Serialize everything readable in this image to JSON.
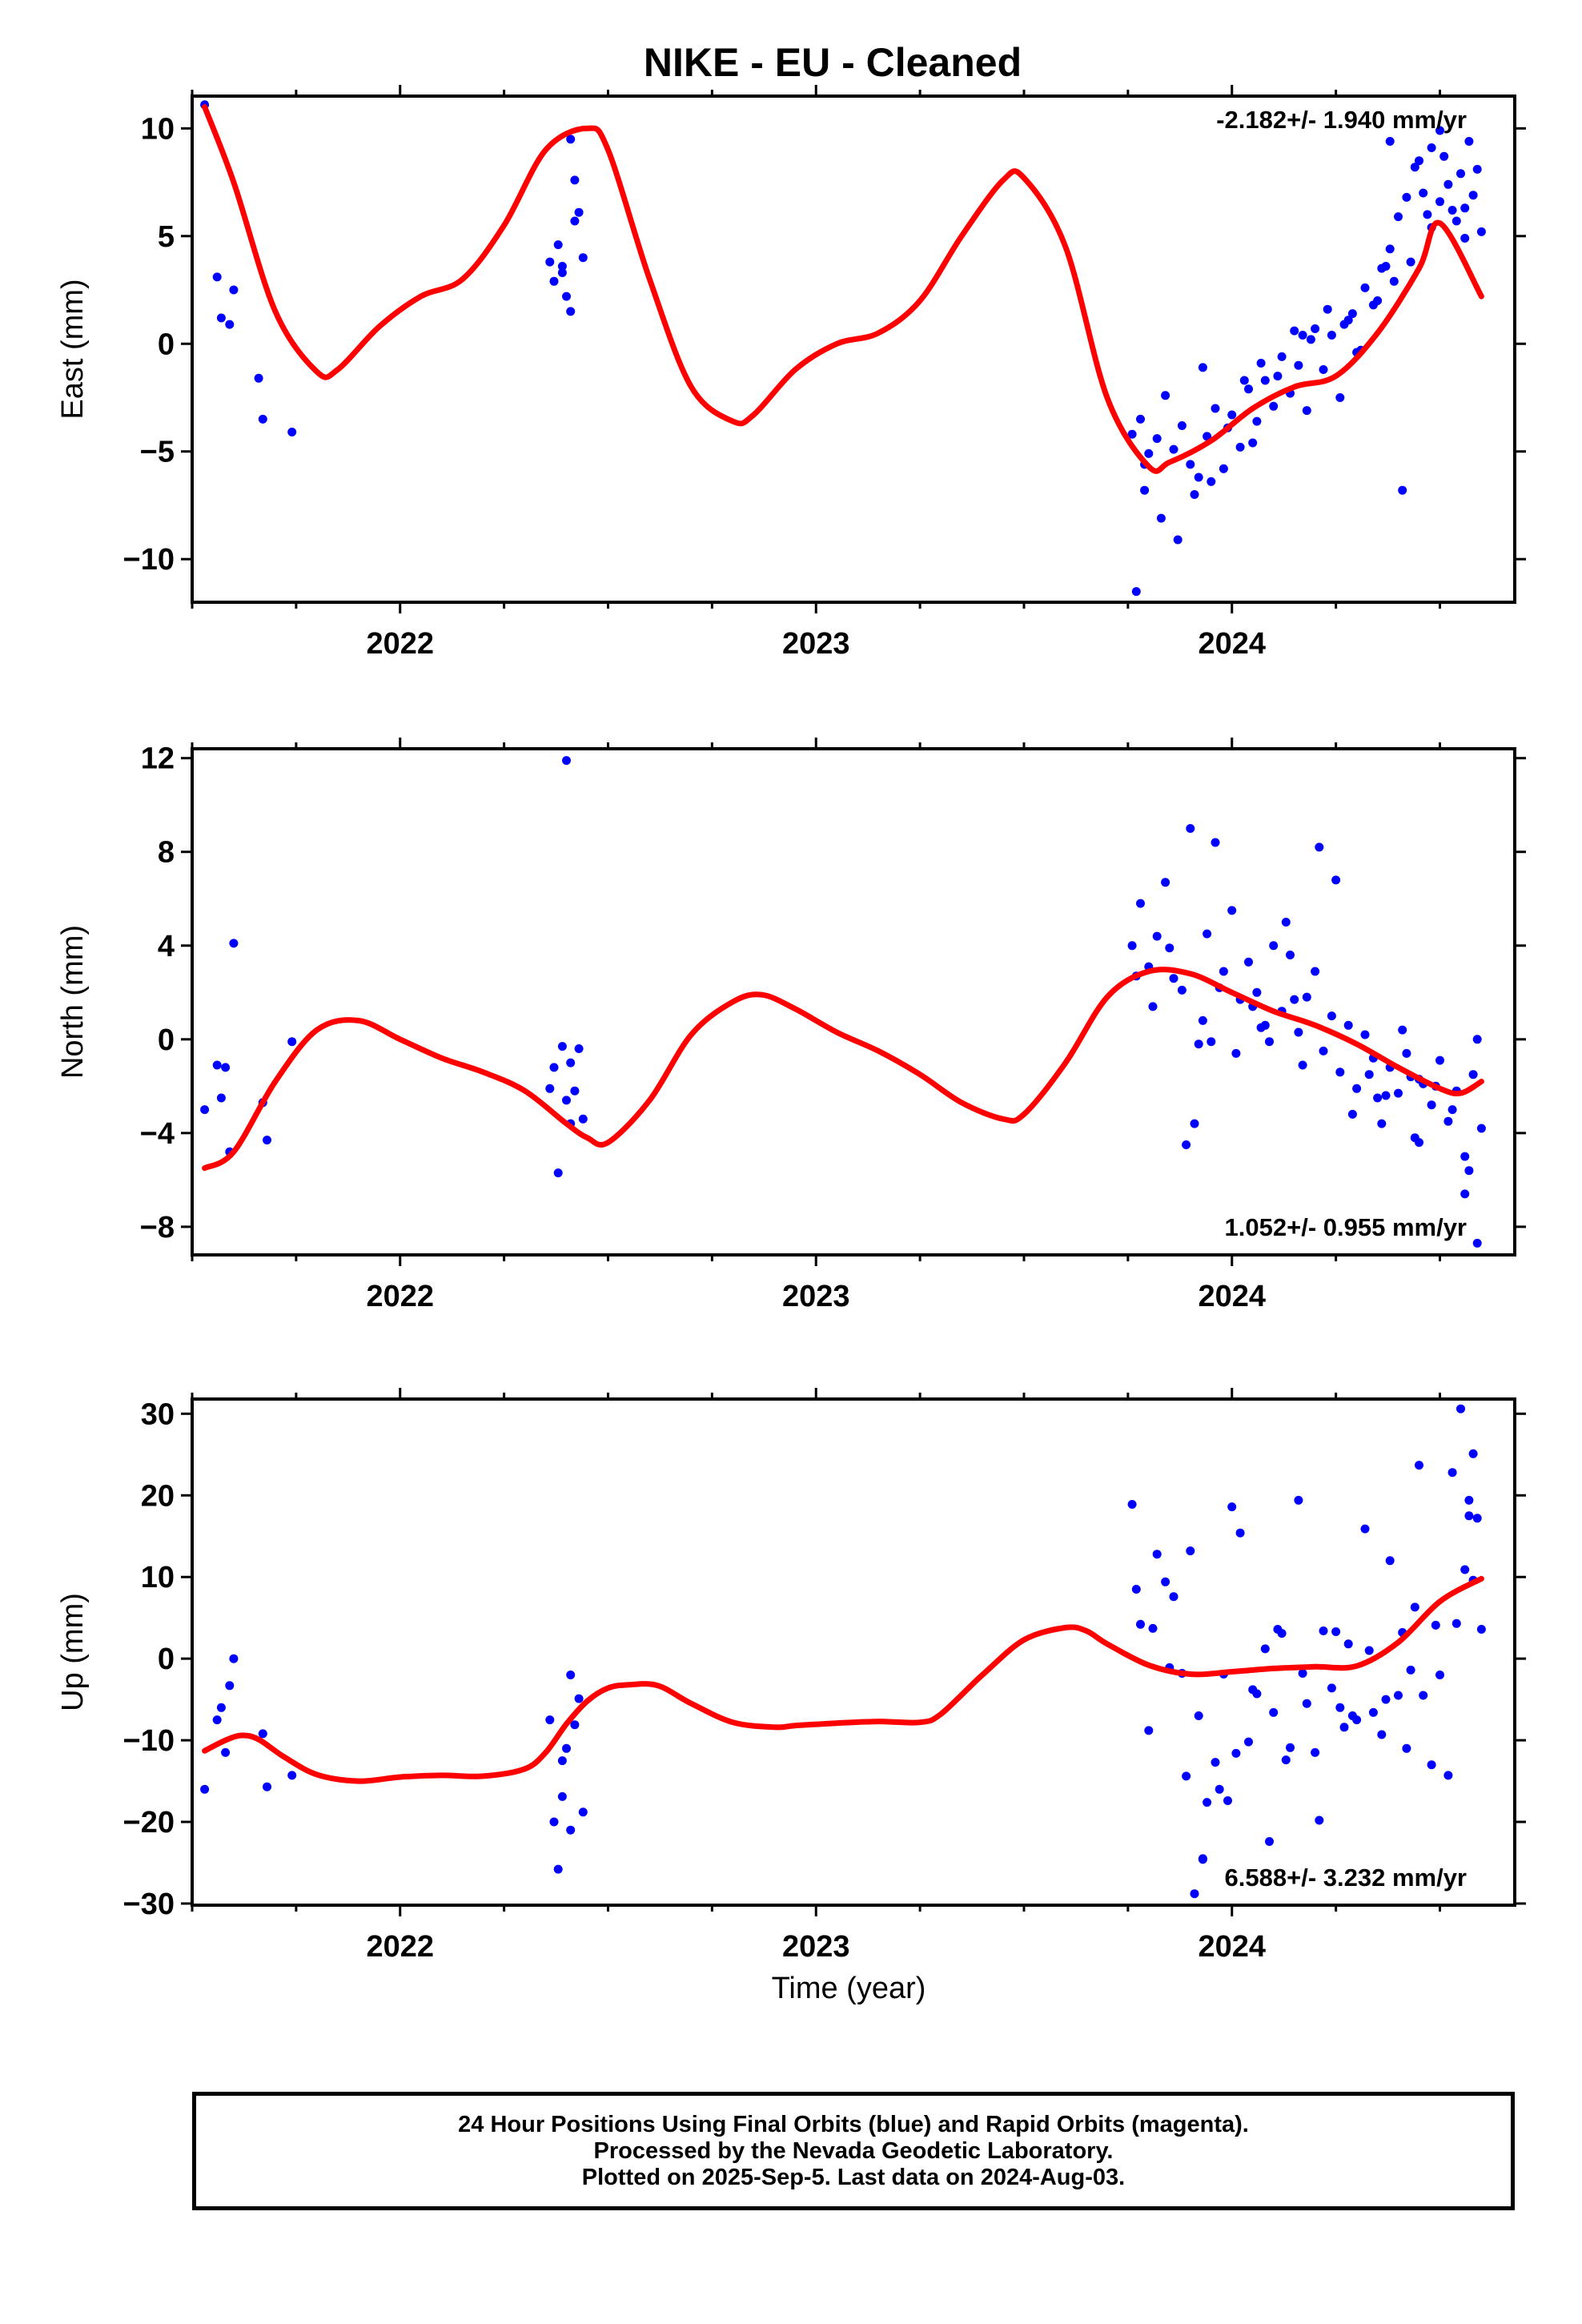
{
  "figure": {
    "title": "NIKE  - EU - Cleaned",
    "time_axis_label": "Time (year)"
  },
  "footer": {
    "line1": "24 Hour Positions Using Final Orbits (blue) and Rapid Orbits (magenta).",
    "line2": "Processed by the Nevada Geodetic Laboratory.",
    "line3": "Plotted on 2025-Sep-5. Last data on 2024-Aug-03."
  },
  "colors": {
    "points": "#0000ff",
    "fit": "#ff0000",
    "frame": "#000000"
  },
  "chart_data": [
    {
      "type": "scatter",
      "ylabel": "East (mm)",
      "xlim": [
        2021.5,
        2024.68
      ],
      "ylim": [
        -12,
        11.5
      ],
      "xticks": [
        "2022",
        "2023",
        "2024"
      ],
      "yticks": [
        10,
        5,
        0,
        -5,
        -10
      ],
      "yticklabels": [
        "10",
        "5",
        "0",
        "−5",
        "−10"
      ],
      "rate_label": "-2.182+/- 1.940 mm/yr",
      "rate_position": "top-right",
      "series": [
        {
          "type": "scatter",
          "x": [
            2021.53,
            2021.56,
            2021.57,
            2021.59,
            2021.6,
            2021.66,
            2021.67,
            2021.74,
            2022.36,
            2022.37,
            2022.38,
            2022.39,
            2022.4,
            2022.41,
            2022.42,
            2022.43,
            2022.44,
            2022.42,
            2022.39,
            2022.41,
            2023.76,
            2023.78,
            2023.79,
            2023.8,
            2023.82,
            2023.84,
            2023.86,
            2023.88,
            2023.9,
            2023.92,
            2023.94,
            2023.96,
            2023.98,
            2024.0,
            2024.02,
            2024.04,
            2024.06,
            2024.08,
            2024.1,
            2024.12,
            2024.14,
            2024.16,
            2024.18,
            2024.2,
            2024.22,
            2024.24,
            2024.26,
            2024.28,
            2024.3,
            2024.32,
            2024.34,
            2024.36,
            2024.38,
            2024.4,
            2024.42,
            2024.44,
            2024.46,
            2024.48,
            2024.5,
            2024.52,
            2024.54,
            2024.56,
            2024.58,
            2024.6,
            2023.77,
            2023.83,
            2023.87,
            2023.91,
            2023.95,
            2023.99,
            2024.03,
            2024.07,
            2024.11,
            2024.15,
            2024.19,
            2024.23,
            2024.27,
            2024.31,
            2024.35,
            2024.39,
            2024.43,
            2024.47,
            2024.51,
            2024.55,
            2024.59,
            2024.38,
            2024.41,
            2024.45,
            2024.5,
            2024.53,
            2024.57,
            2024.48,
            2024.56,
            2023.79,
            2023.93,
            2024.05,
            2024.17,
            2024.29,
            2024.37
          ],
          "y": [
            11.1,
            3.1,
            1.2,
            0.9,
            2.5,
            -1.6,
            -3.5,
            -4.1,
            3.8,
            2.9,
            4.6,
            3.3,
            2.2,
            1.5,
            5.7,
            6.1,
            4.0,
            7.6,
            3.6,
            9.5,
            -4.2,
            -3.5,
            -6.8,
            -5.1,
            -4.4,
            -2.4,
            -4.9,
            -3.8,
            -5.6,
            -6.2,
            -4.3,
            -3.0,
            -5.8,
            -3.3,
            -4.8,
            -2.1,
            -3.6,
            -1.7,
            -2.9,
            -0.6,
            -2.3,
            -1.0,
            -3.1,
            0.7,
            -1.2,
            0.4,
            -2.5,
            1.1,
            -0.4,
            2.6,
            1.8,
            3.5,
            4.4,
            5.9,
            6.8,
            8.2,
            7.0,
            5.4,
            6.6,
            7.4,
            5.7,
            6.3,
            6.9,
            5.2,
            -11.5,
            -8.1,
            -9.1,
            -7.0,
            -6.4,
            -3.9,
            -1.7,
            -0.9,
            -1.5,
            0.6,
            0.2,
            1.6,
            0.9,
            -0.3,
            2.0,
            2.9,
            3.8,
            6.0,
            8.7,
            7.9,
            8.1,
            9.4,
            -6.8,
            8.5,
            9.9,
            6.2,
            9.4,
            9.1,
            4.9,
            -5.6,
            -1.1,
            -4.6,
            0.4,
            1.4,
            3.6
          ]
        },
        {
          "type": "line",
          "name": "",
          "x": [
            2021.53,
            2021.6,
            2021.7,
            2021.8,
            2021.85,
            2021.95,
            2022.05,
            2022.15,
            2022.25,
            2022.35,
            2022.45,
            2022.5,
            2022.6,
            2022.7,
            2022.8,
            2022.85,
            2022.95,
            2023.05,
            2023.15,
            2023.25,
            2023.35,
            2023.45,
            2023.5,
            2023.6,
            2023.7,
            2023.8,
            2023.85,
            2023.95,
            2024.05,
            2024.15,
            2024.25,
            2024.35,
            2024.45,
            2024.5,
            2024.6
          ],
          "y": [
            11.0,
            7.5,
            1.5,
            -1.3,
            -1.2,
            0.8,
            2.2,
            3.0,
            5.5,
            9.0,
            10.0,
            9.0,
            3.0,
            -2.0,
            -3.6,
            -3.3,
            -1.2,
            0.0,
            0.5,
            2.0,
            5.0,
            7.6,
            7.7,
            4.5,
            -2.5,
            -5.7,
            -5.5,
            -4.5,
            -3.0,
            -2.0,
            -1.5,
            0.5,
            3.5,
            5.6,
            2.2
          ]
        }
      ]
    },
    {
      "type": "scatter",
      "ylabel": "North (mm)",
      "xlim": [
        2021.5,
        2024.68
      ],
      "ylim": [
        -9.2,
        12.4
      ],
      "xticks": [
        "2022",
        "2023",
        "2024"
      ],
      "yticks": [
        12,
        8,
        4,
        0,
        -4,
        -8
      ],
      "yticklabels": [
        "12",
        "8",
        "4",
        "0",
        "−4",
        "−8"
      ],
      "rate_label": "1.052+/- 0.955 mm/yr",
      "rate_position": "bottom-right",
      "series": [
        {
          "type": "scatter",
          "x": [
            2021.53,
            2021.56,
            2021.57,
            2021.58,
            2021.59,
            2021.6,
            2021.67,
            2021.68,
            2021.74,
            2022.36,
            2022.37,
            2022.38,
            2022.39,
            2022.4,
            2022.41,
            2022.42,
            2022.43,
            2022.44,
            2022.4,
            2022.41,
            2023.76,
            2023.78,
            2023.8,
            2023.82,
            2023.84,
            2023.86,
            2023.88,
            2023.9,
            2023.92,
            2023.94,
            2023.96,
            2023.98,
            2024.0,
            2024.02,
            2024.04,
            2024.06,
            2024.08,
            2024.1,
            2024.12,
            2024.14,
            2024.16,
            2024.18,
            2024.2,
            2024.22,
            2024.24,
            2024.26,
            2024.28,
            2024.3,
            2024.32,
            2024.34,
            2024.36,
            2024.38,
            2024.4,
            2024.42,
            2024.44,
            2024.46,
            2024.48,
            2024.5,
            2024.52,
            2024.54,
            2024.56,
            2024.58,
            2024.6,
            2023.77,
            2023.81,
            2023.85,
            2023.89,
            2023.93,
            2023.97,
            2024.01,
            2024.05,
            2024.09,
            2024.13,
            2024.17,
            2024.21,
            2024.25,
            2024.29,
            2024.33,
            2024.37,
            2024.41,
            2024.45,
            2024.49,
            2024.53,
            2024.57,
            2024.59,
            2023.91,
            2023.95,
            2024.07,
            2024.15,
            2024.45,
            2024.59,
            2024.56,
            2024.35,
            2024.43
          ],
          "y": [
            -3.0,
            -1.1,
            -2.5,
            -1.2,
            -4.8,
            4.1,
            -2.7,
            -4.3,
            -0.1,
            -2.1,
            -1.2,
            -5.7,
            -0.3,
            -2.6,
            -1.0,
            -2.2,
            -0.4,
            -3.4,
            11.9,
            -3.6,
            4.0,
            5.8,
            3.1,
            4.4,
            6.7,
            2.6,
            2.1,
            9.0,
            -0.2,
            4.5,
            8.4,
            2.9,
            5.5,
            1.7,
            3.3,
            2.0,
            0.6,
            4.0,
            1.2,
            3.6,
            0.3,
            1.8,
            2.9,
            -0.5,
            1.0,
            -1.4,
            0.6,
            -2.1,
            0.2,
            -0.8,
            -3.6,
            -1.2,
            -2.3,
            -0.6,
            -4.2,
            -1.9,
            -2.8,
            -0.9,
            -3.5,
            -2.2,
            -5.0,
            -1.5,
            -3.8,
            2.7,
            1.4,
            3.9,
            -4.5,
            0.8,
            2.2,
            -0.6,
            1.4,
            -0.1,
            5.0,
            -1.1,
            8.2,
            6.8,
            -3.2,
            -1.5,
            -2.4,
            0.4,
            -4.4,
            -2.0,
            -3.0,
            -5.6,
            -8.7,
            -3.6,
            -0.1,
            0.5,
            1.7,
            -1.7,
            0.0,
            -6.6,
            -2.5,
            -1.6
          ]
        },
        {
          "type": "line",
          "name": "",
          "x": [
            2021.53,
            2021.6,
            2021.7,
            2021.8,
            2021.9,
            2022.0,
            2022.1,
            2022.2,
            2022.3,
            2022.4,
            2022.45,
            2022.5,
            2022.6,
            2022.7,
            2022.8,
            2022.87,
            2022.95,
            2023.05,
            2023.15,
            2023.25,
            2023.35,
            2023.45,
            2023.5,
            2023.6,
            2023.7,
            2023.8,
            2023.9,
            2024.0,
            2024.1,
            2024.2,
            2024.3,
            2024.4,
            2024.5,
            2024.55,
            2024.6
          ],
          "y": [
            -5.5,
            -4.8,
            -1.8,
            0.4,
            0.8,
            0.0,
            -0.8,
            -1.4,
            -2.2,
            -3.6,
            -4.2,
            -4.4,
            -2.6,
            0.2,
            1.6,
            1.9,
            1.3,
            0.3,
            -0.5,
            -1.5,
            -2.7,
            -3.4,
            -3.2,
            -1.0,
            1.8,
            2.9,
            2.8,
            2.0,
            1.2,
            0.6,
            -0.2,
            -1.2,
            -2.1,
            -2.3,
            -1.8
          ]
        }
      ]
    },
    {
      "type": "scatter",
      "ylabel": "Up (mm)",
      "xlim": [
        2021.5,
        2024.68
      ],
      "ylim": [
        -30.2,
        31.8
      ],
      "xticks": [
        "2022",
        "2023",
        "2024"
      ],
      "yticks": [
        30,
        20,
        10,
        0,
        -10,
        -20,
        -30
      ],
      "yticklabels": [
        "30",
        "20",
        "10",
        "0",
        "−10",
        "−20",
        "−30"
      ],
      "rate_label": "6.588+/- 3.232 mm/yr",
      "rate_position": "bottom-right",
      "series": [
        {
          "type": "scatter",
          "x": [
            2021.53,
            2021.56,
            2021.57,
            2021.58,
            2021.59,
            2021.6,
            2021.67,
            2021.68,
            2021.74,
            2022.36,
            2022.37,
            2022.38,
            2022.39,
            2022.4,
            2022.41,
            2022.42,
            2022.43,
            2022.44,
            2022.39,
            2022.41,
            2023.76,
            2023.78,
            2023.8,
            2023.82,
            2023.84,
            2023.86,
            2023.88,
            2023.9,
            2023.92,
            2023.94,
            2023.96,
            2023.98,
            2024.0,
            2024.02,
            2024.04,
            2024.06,
            2024.08,
            2024.1,
            2024.12,
            2024.14,
            2024.16,
            2024.18,
            2024.2,
            2024.22,
            2024.24,
            2024.26,
            2024.28,
            2024.3,
            2024.32,
            2024.34,
            2024.36,
            2024.38,
            2024.4,
            2024.42,
            2024.44,
            2024.46,
            2024.48,
            2024.5,
            2024.52,
            2024.54,
            2024.56,
            2024.58,
            2024.6,
            2023.77,
            2023.81,
            2023.85,
            2023.89,
            2023.93,
            2023.97,
            2024.01,
            2024.05,
            2024.09,
            2024.13,
            2024.17,
            2024.21,
            2024.25,
            2024.29,
            2024.33,
            2024.37,
            2024.41,
            2024.45,
            2024.49,
            2024.53,
            2024.57,
            2024.59,
            2024.58,
            2024.55,
            2023.91,
            2023.93,
            2023.99,
            2024.11,
            2024.27,
            2024.43,
            2024.57
          ],
          "y": [
            -16.0,
            -7.5,
            -6.0,
            -11.5,
            -3.3,
            0.0,
            -9.2,
            -15.7,
            -14.3,
            -7.5,
            -20.0,
            -25.8,
            -12.5,
            -11.0,
            -2.0,
            -8.1,
            -4.9,
            -18.8,
            -16.9,
            -21.0,
            18.9,
            4.2,
            -8.8,
            12.8,
            9.4,
            7.6,
            -1.8,
            13.2,
            -7.0,
            -17.6,
            -12.7,
            -1.9,
            18.6,
            15.4,
            -10.2,
            -4.3,
            1.2,
            -6.6,
            3.1,
            -10.9,
            19.4,
            -5.5,
            -11.5,
            3.4,
            -3.6,
            -6.0,
            1.8,
            -7.5,
            15.9,
            -6.6,
            -9.3,
            12.0,
            -4.5,
            -11.0,
            6.3,
            -4.5,
            -13.0,
            -2.0,
            -14.3,
            4.3,
            10.9,
            9.6,
            3.6,
            8.5,
            3.7,
            -1.1,
            -14.4,
            -24.6,
            -16.0,
            -11.6,
            -3.8,
            -22.4,
            -12.4,
            -1.8,
            -19.8,
            3.3,
            -7.0,
            1.0,
            -5.0,
            3.2,
            23.7,
            4.1,
            22.8,
            19.4,
            17.2,
            25.1,
            30.6,
            -28.8,
            -24.5,
            -17.4,
            3.6,
            -8.4,
            -1.4,
            17.5
          ]
        },
        {
          "type": "line",
          "name": "",
          "x": [
            2021.53,
            2021.58,
            2021.62,
            2021.66,
            2021.72,
            2021.8,
            2021.9,
            2022.0,
            2022.1,
            2022.2,
            2022.3,
            2022.35,
            2022.4,
            2022.45,
            2022.5,
            2022.55,
            2022.62,
            2022.7,
            2022.8,
            2022.9,
            2022.95,
            2023.05,
            2023.15,
            2023.25,
            2023.3,
            2023.4,
            2023.5,
            2023.6,
            2023.65,
            2023.7,
            2023.8,
            2023.9,
            2024.0,
            2024.1,
            2024.2,
            2024.3,
            2024.4,
            2024.5,
            2024.6
          ],
          "y": [
            -11.3,
            -10.0,
            -9.4,
            -9.9,
            -12.0,
            -14.2,
            -15.0,
            -14.5,
            -14.3,
            -14.4,
            -13.5,
            -11.5,
            -8.0,
            -5.2,
            -3.6,
            -3.2,
            -3.3,
            -5.5,
            -7.8,
            -8.4,
            -8.2,
            -7.9,
            -7.7,
            -7.8,
            -6.8,
            -2.0,
            2.3,
            3.8,
            3.4,
            1.8,
            -0.8,
            -1.9,
            -1.6,
            -1.2,
            -1.0,
            -0.9,
            2.0,
            7.0,
            9.8
          ]
        }
      ]
    }
  ]
}
